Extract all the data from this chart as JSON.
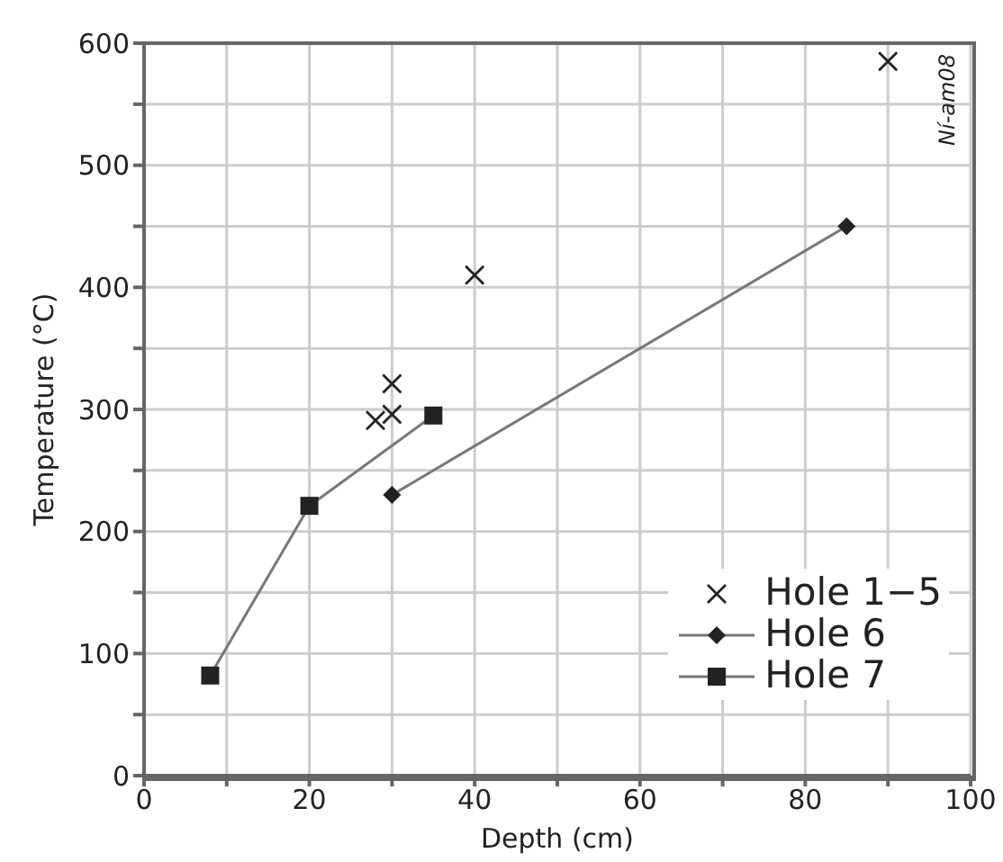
{
  "chart_data": {
    "type": "scatter",
    "xlabel": "Depth (cm)",
    "ylabel": "Temperature (°C)",
    "xlim": [
      0,
      100
    ],
    "ylim": [
      0,
      600
    ],
    "xticks": [
      0,
      {
        "value": 10,
        "label": null
      },
      20,
      {
        "value": 30,
        "label": null
      },
      40,
      {
        "value": 50,
        "label": null
      },
      60,
      {
        "value": 70,
        "label": null
      },
      80,
      {
        "value": 90,
        "label": null
      },
      100
    ],
    "yticks": [
      0,
      {
        "value": 50,
        "label": null
      },
      100,
      {
        "value": 150,
        "label": null
      },
      200,
      {
        "value": 250,
        "label": null
      },
      300,
      {
        "value": 350,
        "label": null
      },
      400,
      {
        "value": 450,
        "label": null
      },
      500,
      {
        "value": 550,
        "label": null
      },
      600
    ],
    "grid": true,
    "legend": "bottom right",
    "annotations": [
      "Ní-am08"
    ],
    "series": [
      {
        "name": "Hole 1−5",
        "type": "scatter",
        "marker": "cross",
        "color": "#222222",
        "x": [
          28,
          30,
          30,
          40,
          90
        ],
        "values": [
          291,
          296,
          321,
          410,
          585
        ]
      },
      {
        "name": "Hole 6",
        "type": "line",
        "marker": "diamond",
        "color": "#222222",
        "x": [
          30,
          85
        ],
        "values": [
          230,
          450
        ]
      },
      {
        "name": "Hole 7",
        "type": "line",
        "marker": "square",
        "color": "#222222",
        "x": [
          8,
          20,
          35
        ],
        "values": [
          82,
          221,
          295
        ]
      }
    ]
  }
}
